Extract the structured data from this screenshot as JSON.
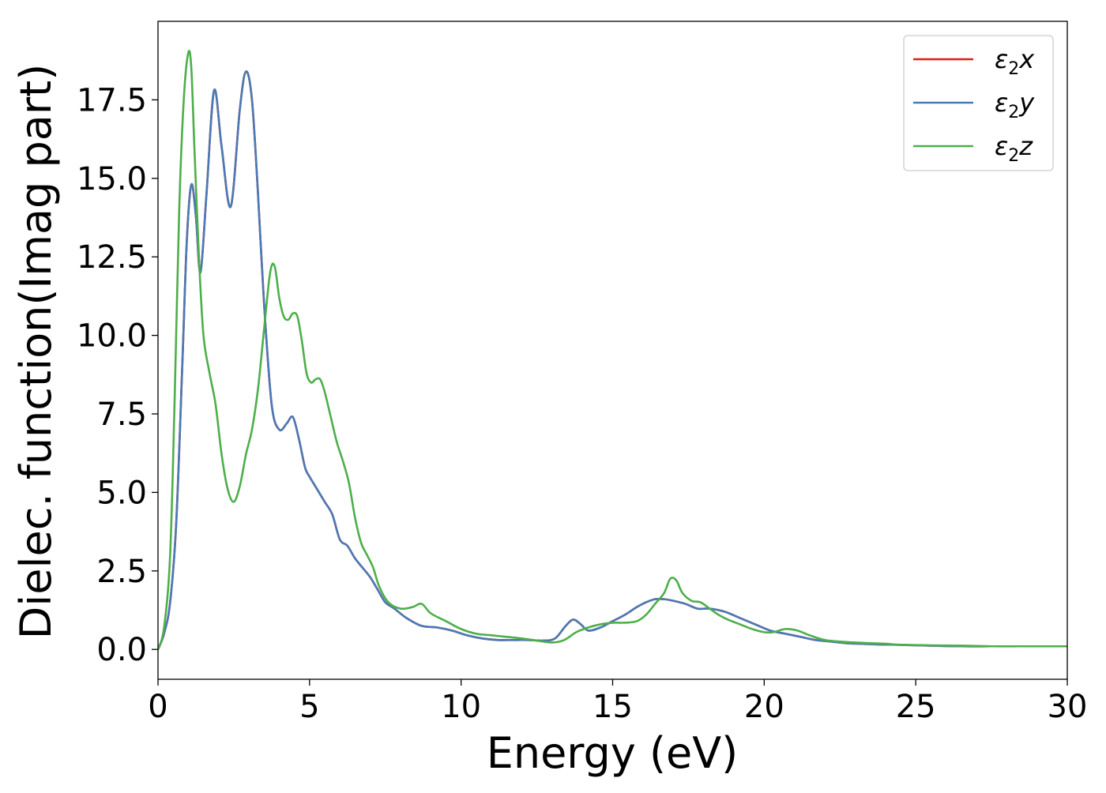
{
  "chart_data": {
    "type": "line",
    "title": "",
    "xlabel": "Energy (eV)",
    "ylabel": "Dielec. function(Imag part)",
    "xlim": [
      0,
      30
    ],
    "ylim": [
      -0.95,
      20
    ],
    "xticks": [
      0,
      5,
      10,
      15,
      20,
      25,
      30
    ],
    "xtick_labels": [
      "0",
      "5",
      "10",
      "15",
      "20",
      "25",
      "30"
    ],
    "yticks": [
      0.0,
      2.5,
      5.0,
      7.5,
      10.0,
      12.5,
      15.0,
      17.5
    ],
    "ytick_labels": [
      "0.0",
      "2.5",
      "5.0",
      "7.5",
      "10.0",
      "12.5",
      "15.0",
      "17.5"
    ],
    "grid": false,
    "legend_position": "top-right",
    "series": [
      {
        "name": "ε2x",
        "legend_main": "ε",
        "legend_sub": "2",
        "legend_var": "x",
        "color": "#e41a1c",
        "x": [
          0,
          0.2,
          0.4,
          0.6,
          0.8,
          0.95,
          1.1,
          1.25,
          1.4,
          1.6,
          1.85,
          2.1,
          2.4,
          2.7,
          2.9,
          3.1,
          3.3,
          3.5,
          3.75,
          4.0,
          4.25,
          4.45,
          4.65,
          4.85,
          5.0,
          5.25,
          5.5,
          5.75,
          6.0,
          6.25,
          6.5,
          6.75,
          7.0,
          7.25,
          7.5,
          7.8,
          8.2,
          8.7,
          9.2,
          9.7,
          10.2,
          10.7,
          11.2,
          11.7,
          12.2,
          12.7,
          13.1,
          13.45,
          13.7,
          13.95,
          14.2,
          14.6,
          15.0,
          15.4,
          15.8,
          16.1,
          16.4,
          16.7,
          17.0,
          17.4,
          17.8,
          18.2,
          18.7,
          19.2,
          19.7,
          20.2,
          20.7,
          21.2,
          21.7,
          22.2,
          22.7,
          23.2,
          23.7,
          24.2,
          24.7,
          25.5,
          26.5,
          27.5,
          28.5,
          29.5,
          30
        ],
        "values": [
          0.0,
          0.5,
          1.5,
          4.0,
          9.0,
          13.0,
          14.8,
          13.8,
          12.0,
          14.5,
          17.8,
          16.0,
          14.1,
          17.2,
          18.4,
          17.5,
          14.5,
          11.0,
          7.8,
          7.0,
          7.2,
          7.4,
          6.7,
          5.8,
          5.5,
          5.1,
          4.7,
          4.3,
          3.5,
          3.3,
          2.9,
          2.6,
          2.3,
          1.9,
          1.5,
          1.3,
          1.0,
          0.75,
          0.7,
          0.6,
          0.45,
          0.35,
          0.3,
          0.3,
          0.3,
          0.28,
          0.35,
          0.75,
          0.95,
          0.8,
          0.6,
          0.7,
          0.9,
          1.1,
          1.35,
          1.5,
          1.6,
          1.6,
          1.55,
          1.45,
          1.3,
          1.3,
          1.2,
          1.0,
          0.8,
          0.6,
          0.5,
          0.4,
          0.3,
          0.25,
          0.2,
          0.18,
          0.16,
          0.15,
          0.14,
          0.12,
          0.1,
          0.1,
          0.1,
          0.1,
          0.1
        ]
      },
      {
        "name": "ε2y",
        "legend_main": "ε",
        "legend_sub": "2",
        "legend_var": "y",
        "color": "#4a7ab5",
        "x": [
          0,
          0.2,
          0.4,
          0.6,
          0.8,
          0.95,
          1.1,
          1.25,
          1.4,
          1.6,
          1.85,
          2.1,
          2.4,
          2.7,
          2.9,
          3.1,
          3.3,
          3.5,
          3.75,
          4.0,
          4.25,
          4.45,
          4.65,
          4.85,
          5.0,
          5.25,
          5.5,
          5.75,
          6.0,
          6.25,
          6.5,
          6.75,
          7.0,
          7.25,
          7.5,
          7.8,
          8.2,
          8.7,
          9.2,
          9.7,
          10.2,
          10.7,
          11.2,
          11.7,
          12.2,
          12.7,
          13.1,
          13.45,
          13.7,
          13.95,
          14.2,
          14.6,
          15.0,
          15.4,
          15.8,
          16.1,
          16.4,
          16.7,
          17.0,
          17.4,
          17.8,
          18.2,
          18.7,
          19.2,
          19.7,
          20.2,
          20.7,
          21.2,
          21.7,
          22.2,
          22.7,
          23.2,
          23.7,
          24.2,
          24.7,
          25.5,
          26.5,
          27.5,
          28.5,
          29.5,
          30
        ],
        "values": [
          0.0,
          0.5,
          1.5,
          4.0,
          9.0,
          13.0,
          14.8,
          13.8,
          12.0,
          14.5,
          17.8,
          16.0,
          14.1,
          17.2,
          18.4,
          17.5,
          14.5,
          11.0,
          7.8,
          7.0,
          7.2,
          7.4,
          6.7,
          5.8,
          5.5,
          5.1,
          4.7,
          4.3,
          3.5,
          3.3,
          2.9,
          2.6,
          2.3,
          1.9,
          1.5,
          1.3,
          1.0,
          0.75,
          0.7,
          0.6,
          0.45,
          0.35,
          0.3,
          0.3,
          0.3,
          0.28,
          0.35,
          0.75,
          0.95,
          0.8,
          0.6,
          0.7,
          0.9,
          1.1,
          1.35,
          1.5,
          1.6,
          1.6,
          1.55,
          1.45,
          1.3,
          1.3,
          1.2,
          1.0,
          0.8,
          0.6,
          0.5,
          0.4,
          0.3,
          0.25,
          0.2,
          0.18,
          0.16,
          0.15,
          0.14,
          0.12,
          0.1,
          0.1,
          0.1,
          0.1,
          0.1
        ]
      },
      {
        "name": "ε2z",
        "legend_main": "ε",
        "legend_sub": "2",
        "legend_var": "z",
        "color": "#4daf4a",
        "x": [
          0,
          0.2,
          0.4,
          0.55,
          0.7,
          0.85,
          1.0,
          1.1,
          1.2,
          1.35,
          1.5,
          1.7,
          1.9,
          2.1,
          2.3,
          2.5,
          2.7,
          2.9,
          3.1,
          3.3,
          3.5,
          3.7,
          3.85,
          4.0,
          4.15,
          4.3,
          4.45,
          4.6,
          4.75,
          4.9,
          5.05,
          5.2,
          5.35,
          5.5,
          5.7,
          5.9,
          6.1,
          6.3,
          6.5,
          6.7,
          6.9,
          7.1,
          7.3,
          7.6,
          8.0,
          8.4,
          8.7,
          9.0,
          9.5,
          10.0,
          10.5,
          11.0,
          11.5,
          12.0,
          12.5,
          13.0,
          13.4,
          13.8,
          14.2,
          14.6,
          15.0,
          15.4,
          15.8,
          16.1,
          16.4,
          16.7,
          16.9,
          17.1,
          17.3,
          17.6,
          17.9,
          18.2,
          18.5,
          18.8,
          19.2,
          19.6,
          20.0,
          20.3,
          20.7,
          21.1,
          21.5,
          22.0,
          22.5,
          23.0,
          23.5,
          24.0,
          24.5,
          25.5,
          26.5,
          27.5,
          28.5,
          29.5,
          30
        ],
        "values": [
          0.0,
          0.7,
          3.0,
          8.0,
          14.0,
          17.5,
          19.0,
          18.5,
          16.0,
          12.5,
          10.0,
          8.8,
          7.8,
          6.2,
          5.1,
          4.7,
          5.2,
          6.2,
          7.0,
          8.3,
          10.2,
          12.0,
          12.2,
          11.2,
          10.6,
          10.5,
          10.7,
          10.6,
          9.8,
          8.8,
          8.5,
          8.6,
          8.6,
          8.2,
          7.4,
          6.6,
          6.0,
          5.3,
          4.2,
          3.4,
          3.0,
          2.6,
          2.0,
          1.5,
          1.3,
          1.35,
          1.45,
          1.15,
          0.9,
          0.65,
          0.5,
          0.45,
          0.4,
          0.35,
          0.28,
          0.22,
          0.3,
          0.55,
          0.7,
          0.8,
          0.85,
          0.85,
          0.9,
          1.1,
          1.45,
          1.8,
          2.25,
          2.2,
          1.8,
          1.55,
          1.5,
          1.3,
          1.1,
          0.95,
          0.8,
          0.65,
          0.55,
          0.55,
          0.65,
          0.6,
          0.45,
          0.3,
          0.25,
          0.22,
          0.2,
          0.18,
          0.15,
          0.13,
          0.12,
          0.1,
          0.1,
          0.1,
          0.1
        ]
      }
    ]
  }
}
